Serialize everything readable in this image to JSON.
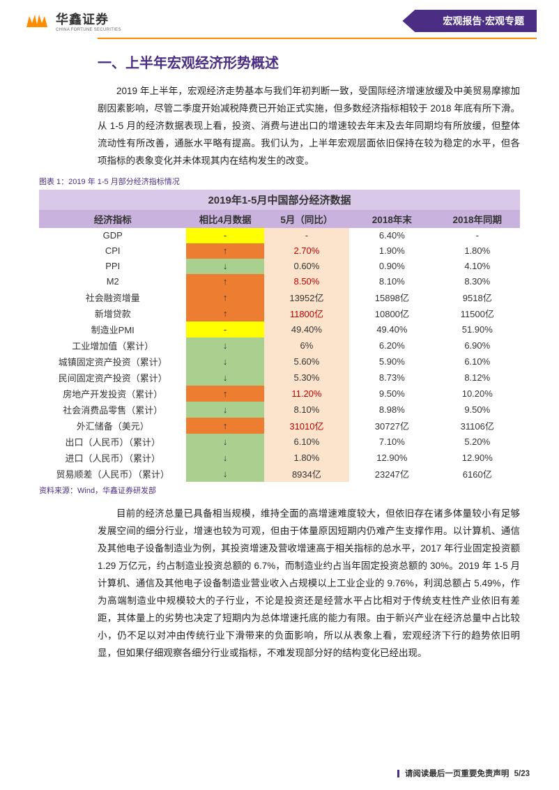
{
  "header": {
    "logo_cn": "华鑫证券",
    "logo_en": "CHINA FORTUNE SECURITIES",
    "tag": "宏观报告·宏观专题",
    "logo_color": "#ff8c00"
  },
  "section_title": "一、上半年宏观经济形势概述",
  "para1": "2019 年上半年，宏观经济走势基本与我们年初判断一致，受国际经济增速放缓及中美贸易摩擦加剧因素影响，尽管二季度开始减税降费已开始正式实施，但多数经济指标相较于 2018 年底有所下滑。从 1-5 月的经济数据表现上看，投资、消费与进出口的增速较去年末及去年同期均有所放缓，但整体流动性有所改善，通胀水平略有提高。我们认为，上半年宏观层面依旧保持在较为稳定的水平，但各项指标的表象变化并未体现其内在结构发生的改变。",
  "table": {
    "caption": "图表 1：2019 年 1-5 月部分经济指标情况",
    "title": "2019年1-5月中国部分经济数据",
    "headers": [
      "经济指标",
      "相比4月数据",
      "5月（同比）",
      "2018年末",
      "2018年同期"
    ],
    "rows": [
      {
        "ind": "GDP",
        "arrow": "-",
        "arrow_bg": "bg-yellow",
        "may": "-",
        "may_txt": "",
        "e2018": "6.40%",
        "s2018": "-"
      },
      {
        "ind": "CPI",
        "arrow": "↑",
        "arrow_bg": "bg-orange",
        "may": "2.70%",
        "may_txt": "txt-red",
        "e2018": "1.90%",
        "s2018": "1.80%"
      },
      {
        "ind": "PPI",
        "arrow": "↓",
        "arrow_bg": "bg-lgreen",
        "may": "0.60%",
        "may_txt": "",
        "e2018": "0.90%",
        "s2018": "4.10%"
      },
      {
        "ind": "M2",
        "arrow": "↑",
        "arrow_bg": "bg-orange",
        "may": "8.50%",
        "may_txt": "txt-red",
        "e2018": "8.10%",
        "s2018": "8.30%"
      },
      {
        "ind": "社会融资增量",
        "arrow": "↑",
        "arrow_bg": "bg-orange",
        "may": "13952亿",
        "may_txt": "",
        "e2018": "15898亿",
        "s2018": "9518亿"
      },
      {
        "ind": "新增贷款",
        "arrow": "↑",
        "arrow_bg": "bg-orange",
        "may": "11800亿",
        "may_txt": "txt-red",
        "e2018": "10800亿",
        "s2018": "11500亿"
      },
      {
        "ind": "制造业PMI",
        "arrow": "-",
        "arrow_bg": "bg-yellow",
        "may": "49.40%",
        "may_txt": "",
        "e2018": "49.40%",
        "s2018": "51.90%"
      },
      {
        "ind": "工业增加值（累计）",
        "arrow": "↓",
        "arrow_bg": "bg-lgreen",
        "may": "6%",
        "may_txt": "",
        "e2018": "6.20%",
        "s2018": "6.90%"
      },
      {
        "ind": "城镇固定资产投资（累计）",
        "arrow": "↓",
        "arrow_bg": "bg-lgreen",
        "may": "5.60%",
        "may_txt": "",
        "e2018": "5.90%",
        "s2018": "6.10%"
      },
      {
        "ind": "民间固定资产投资（累计）",
        "arrow": "↓",
        "arrow_bg": "bg-lgreen",
        "may": "5.30%",
        "may_txt": "",
        "e2018": "8.73%",
        "s2018": "8.12%"
      },
      {
        "ind": "房地产开发投资（累计）",
        "arrow": "↑",
        "arrow_bg": "bg-orange",
        "may": "11.20%",
        "may_txt": "txt-red",
        "e2018": "9.50%",
        "s2018": "10.20%"
      },
      {
        "ind": "社会消费品零售（累计）",
        "arrow": "↓",
        "arrow_bg": "bg-lgreen",
        "may": "8.10%",
        "may_txt": "",
        "e2018": "8.98%",
        "s2018": "9.50%"
      },
      {
        "ind": "外汇储备（美元）",
        "arrow": "↑",
        "arrow_bg": "bg-orange",
        "may": "31010亿",
        "may_txt": "txt-red",
        "e2018": "30727亿",
        "s2018": "31106亿"
      },
      {
        "ind": "出口（人民币）（累计）",
        "arrow": "↓",
        "arrow_bg": "bg-lgreen",
        "may": "6.10%",
        "may_txt": "",
        "e2018": "7.10%",
        "s2018": "5.20%"
      },
      {
        "ind": "进口（人民币）（累计）",
        "arrow": "↓",
        "arrow_bg": "bg-lgreen",
        "may": "1.80%",
        "may_txt": "",
        "e2018": "12.90%",
        "s2018": "12.90%"
      },
      {
        "ind": "贸易顺差（人民币）（累计）",
        "arrow": "↓",
        "arrow_bg": "bg-lgreen",
        "may": "8934亿",
        "may_txt": "",
        "e2018": "23247亿",
        "s2018": "6160亿"
      }
    ],
    "source": "资料来源：Wind，华鑫证券研发部",
    "colors": {
      "title_bg": "#d9c8e8",
      "header_bg": "#c9b3de",
      "pale_bg": "#fce4cc",
      "yellow": "#ffff00",
      "orange": "#ed7d31",
      "lgreen": "#a9d08e",
      "red_txt": "#c00000"
    }
  },
  "para2": "目前的经济总量已具备相当规模，维持全面的高增速难度较大，但依旧存在诸多体量较小有足够发展空间的细分行业，增速也较为可观，但由于体量原因短期内仍难产生支撑作用。以计算机、通信及其他电子设备制造业为例，其投资增速及营收增速高于相关指标的总水平，2017 年行业固定投资额 1.29 万亿元，约占制造业投资总额的 6.7%，而制造业约占当年固定投资总额的 30%。2019 年 1-5 月计算机、通信及其他电子设备制造业营业收入占规模以上工业企业的 9.76%，利润总额占 5.49%，作为高端制造业中规模较大的子行业，不论是投资还是经营水平占比相对于传统支柱性产业依旧有差距，其体量上的劣势也决定了短期内为总体增速托底的能力有限。由于新兴产业在经济总量中占比较小，仍不足以对冲由传统行业下滑带来的负面影响，所以从表象上看，宏观经济下行的趋势依旧明显，但如果仔细观察各细分行业或指标，不难发现部分好的结构变化已经出现。",
  "footer": {
    "text": "请阅读最后一页重要免责声明",
    "page": "5/23"
  }
}
